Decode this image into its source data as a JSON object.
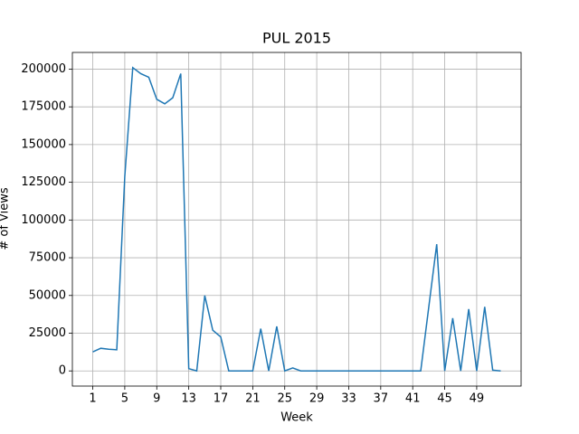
{
  "chart_data": {
    "type": "line",
    "title": "PUL 2015",
    "x_label": "Week",
    "y_label": "# of Views",
    "x": [
      1,
      2,
      3,
      4,
      5,
      6,
      7,
      8,
      9,
      10,
      11,
      12,
      13,
      14,
      15,
      16,
      17,
      18,
      19,
      20,
      21,
      22,
      23,
      24,
      25,
      26,
      27,
      28,
      29,
      30,
      31,
      32,
      33,
      34,
      35,
      36,
      37,
      38,
      39,
      40,
      41,
      42,
      43,
      44,
      45,
      46,
      47,
      48,
      49,
      50,
      51,
      52
    ],
    "series": [
      {
        "name": "PUL 2015",
        "color": "#1f77b4",
        "values": [
          12600,
          15000,
          14400,
          14000,
          128700,
          201000,
          197000,
          194600,
          180000,
          177000,
          181000,
          197000,
          1500,
          0,
          50000,
          27000,
          22500,
          0,
          0,
          0,
          0,
          28000,
          0,
          29500,
          0,
          2000,
          0,
          0,
          0,
          0,
          0,
          0,
          0,
          0,
          0,
          0,
          0,
          0,
          0,
          0,
          0,
          0,
          42000,
          84000,
          0,
          35000,
          0,
          41000,
          0,
          42500,
          500,
          0
        ]
      }
    ],
    "xlim": [
      -1.55,
      54.55
    ],
    "ylim": [
      -10050,
      211050
    ],
    "xticks": [
      1,
      5,
      9,
      13,
      17,
      21,
      25,
      29,
      33,
      37,
      41,
      45,
      49
    ],
    "yticks": [
      0,
      25000,
      50000,
      75000,
      100000,
      125000,
      150000,
      175000,
      200000
    ],
    "grid": true
  }
}
